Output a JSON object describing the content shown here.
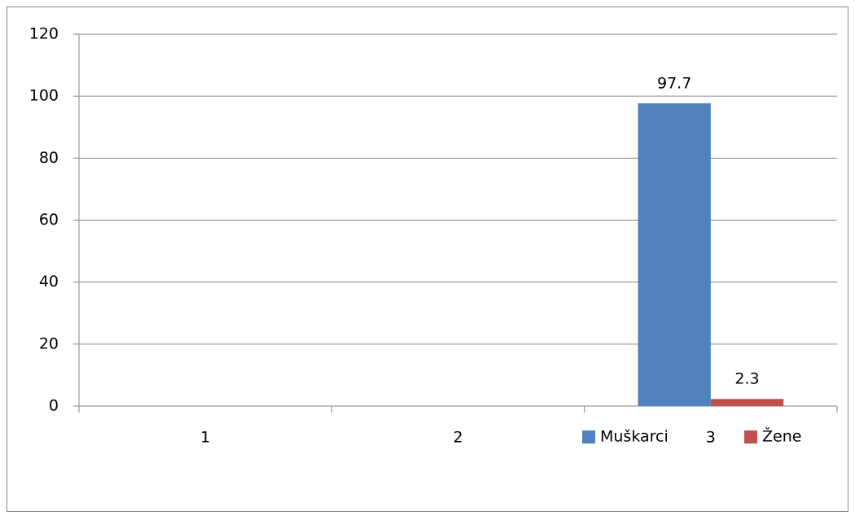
{
  "chart_data": {
    "type": "bar",
    "categories": [
      "1",
      "2",
      "3"
    ],
    "series": [
      {
        "name": "Muškarci",
        "color": "#4f81bd",
        "values": [
          null,
          null,
          97.7
        ]
      },
      {
        "name": "Žene",
        "color": "#c0504d",
        "values": [
          null,
          null,
          2.3
        ]
      }
    ],
    "ylim": [
      0,
      120
    ],
    "yticks": [
      0,
      20,
      40,
      60,
      80,
      100,
      120
    ],
    "grid": true,
    "legend": "bottom"
  }
}
